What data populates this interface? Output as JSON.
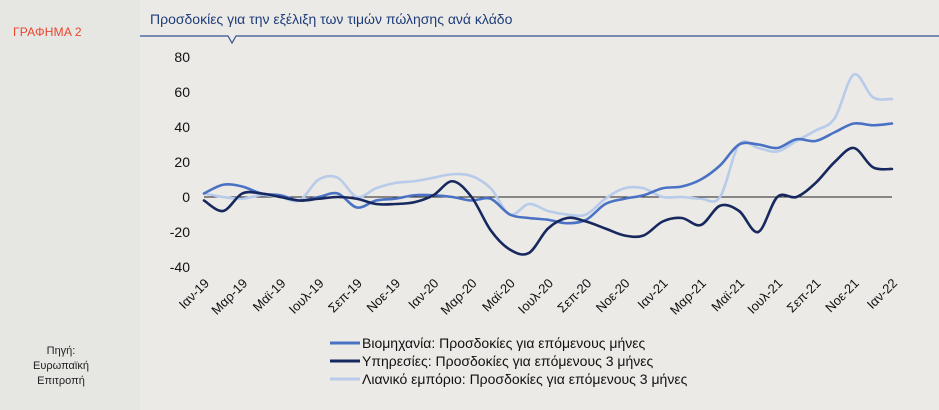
{
  "sidebar": {
    "figure_label": "ΓΡΑΦΗΜΑ 2",
    "source_lines": [
      "Πηγή:",
      "Ευρωπαϊκή",
      "Επιτροπή"
    ]
  },
  "chart_data": {
    "type": "line",
    "title": "Προσδοκίες για την εξέλιξη των τιμών πώλησης ανά κλάδο",
    "xlabel": "",
    "ylabel": "",
    "ylim": [
      -40,
      80
    ],
    "yticks": [
      80,
      60,
      40,
      20,
      0,
      -20,
      -40
    ],
    "grid": false,
    "legend_position": "bottom",
    "x_tick_labels": [
      "Ιαν-19",
      "Μαρ-19",
      "Μαϊ-19",
      "Ιουλ-19",
      "Σεπ-19",
      "Νοε-19",
      "Ιαν-20",
      "Μαρ-20",
      "Μαϊ-20",
      "Ιουλ-20",
      "Σεπ-20",
      "Νοε-20",
      "Ιαν-21",
      "Μαρ-21",
      "Μαϊ-21",
      "Ιουλ-21",
      "Σεπ-21",
      "Νοε-21",
      "Ιαν-22"
    ],
    "x": [
      "Ιαν-19",
      "Φεβ-19",
      "Μαρ-19",
      "Απρ-19",
      "Μαϊ-19",
      "Ιουν-19",
      "Ιουλ-19",
      "Αυγ-19",
      "Σεπ-19",
      "Οκτ-19",
      "Νοε-19",
      "Δεκ-19",
      "Ιαν-20",
      "Φεβ-20",
      "Μαρ-20",
      "Απρ-20",
      "Μαϊ-20",
      "Ιουν-20",
      "Ιουλ-20",
      "Αυγ-20",
      "Σεπ-20",
      "Οκτ-20",
      "Νοε-20",
      "Δεκ-20",
      "Ιαν-21",
      "Φεβ-21",
      "Μαρ-21",
      "Απρ-21",
      "Μαϊ-21",
      "Ιουν-21",
      "Ιουλ-21",
      "Αυγ-21",
      "Σεπ-21",
      "Οκτ-21",
      "Νοε-21",
      "Δεκ-21",
      "Ιαν-22"
    ],
    "series": [
      {
        "name": "Βιομηχανία: Προσδοκίες για επόμενους μήνες",
        "color": "#4a72c4",
        "width": 2.6,
        "values": [
          2,
          7,
          6,
          2,
          1,
          -2,
          0,
          2,
          -6,
          -2,
          -1,
          1,
          1,
          0,
          -2,
          -1,
          -10,
          -12,
          -13,
          -15,
          -13,
          -4,
          -1,
          1,
          5,
          6,
          10,
          18,
          30,
          30,
          28,
          33,
          32,
          37,
          42,
          41,
          42
        ]
      },
      {
        "name": "Υπηρεσίες: Προσδοκίες για επόμενους 3 μήνες",
        "color": "#16285e",
        "width": 2.6,
        "values": [
          -2,
          -8,
          2,
          2,
          0,
          -2,
          -1,
          0,
          -1,
          -4,
          -4,
          -3,
          1,
          9,
          0,
          -19,
          -30,
          -32,
          -18,
          -12,
          -14,
          -18,
          -22,
          -22,
          -14,
          -12,
          -16,
          -5,
          -8,
          -20,
          0,
          0,
          8,
          20,
          28,
          17,
          16
        ]
      },
      {
        "name": "Λιανικό εμπόριο: Προσδοκίες για επόμενους 3 μήνες",
        "color": "#b8cbea",
        "width": 2.6,
        "values": [
          2,
          0,
          -1,
          1,
          0,
          -2,
          10,
          11,
          0,
          5,
          8,
          9,
          11,
          13,
          12,
          5,
          -10,
          -4,
          -8,
          -10,
          -10,
          -1,
          5,
          5,
          0,
          0,
          -1,
          0,
          30,
          28,
          26,
          32,
          38,
          45,
          70,
          57,
          56
        ]
      }
    ]
  }
}
